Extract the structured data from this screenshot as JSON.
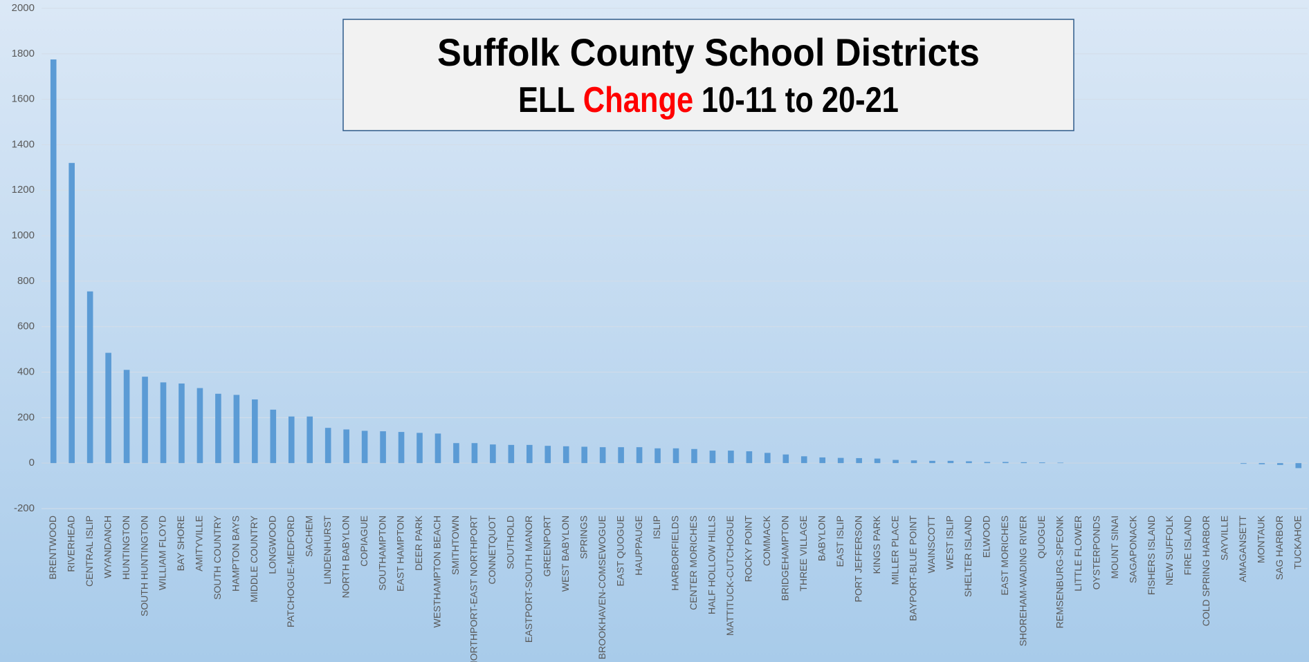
{
  "chart_data": {
    "type": "bar",
    "title": "Suffolk County School Districts",
    "subtitle": [
      "ELL",
      "Change",
      "10-11 to 20-21"
    ],
    "categories": [
      "BRENTWOOD",
      "RIVERHEAD",
      "CENTRAL ISLIP",
      "WYANDANCH",
      "HUNTINGTON",
      "SOUTH HUNTINGTON",
      "WILLIAM FLOYD",
      "BAY SHORE",
      "AMITYVILLE",
      "SOUTH COUNTRY",
      "HAMPTON BAYS",
      "MIDDLE COUNTRY",
      "LONGWOOD",
      "PATCHOGUE-MEDFORD",
      "SACHEM",
      "LINDENHURST",
      "NORTH BABYLON",
      "COPIAGUE",
      "SOUTHAMPTON",
      "EAST HAMPTON",
      "DEER PARK",
      "WESTHAMPTON BEACH",
      "SMITHTOWN",
      "NORTHPORT-EAST NORTHPORT",
      "CONNETQUOT",
      "SOUTHOLD",
      "EASTPORT-SOUTH MANOR",
      "GREENPORT",
      "WEST BABYLON",
      "SPRINGS",
      "BROOKHAVEN-COMSEWOGUE",
      "EAST QUOGUE",
      "HAUPPAUGE",
      "ISLIP",
      "HARBORFIELDS",
      "CENTER MORICHES",
      "HALF HOLLOW HILLS",
      "MATTITUCK-CUTCHOGUE",
      "ROCKY POINT",
      "COMMACK",
      "BRIDGEHAMPTON",
      "THREE VILLAGE",
      "BABYLON",
      "EAST ISLIP",
      "PORT JEFFERSON",
      "KINGS PARK",
      "MILLER PLACE",
      "BAYPORT-BLUE POINT",
      "WAINSCOTT",
      "WEST ISLIP",
      "SHELTER ISLAND",
      "ELWOOD",
      "EAST MORICHES",
      "SHOREHAM-WADING RIVER",
      "QUOGUE",
      "REMSENBURG-SPEONK",
      "LITTLE FLOWER",
      "OYSTERPONDS",
      "MOUNT SINAI",
      "SAGAPONACK",
      "FISHERS ISLAND",
      "NEW SUFFOLK",
      "FIRE ISLAND",
      "COLD SPRING HARBOR",
      "SAYVILLE",
      "AMAGANSETT",
      "MONTAUK",
      "SAG HARBOR",
      "TUCKAHOE"
    ],
    "values": [
      1775,
      1320,
      755,
      485,
      410,
      380,
      355,
      350,
      330,
      305,
      300,
      280,
      235,
      205,
      205,
      155,
      148,
      142,
      140,
      137,
      133,
      130,
      88,
      88,
      82,
      80,
      80,
      76,
      74,
      72,
      70,
      70,
      70,
      65,
      65,
      62,
      55,
      55,
      52,
      45,
      38,
      30,
      25,
      23,
      22,
      20,
      14,
      12,
      10,
      10,
      8,
      5,
      5,
      4,
      3,
      2,
      0,
      0,
      0,
      0,
      0,
      0,
      0,
      0,
      0,
      -3,
      -5,
      -8,
      -22
    ],
    "color": "#5b9bd5",
    "highlight_color": "#ff0000",
    "ylim": [
      -200,
      2000
    ],
    "yticks": [
      -200,
      0,
      200,
      400,
      600,
      800,
      1000,
      1200,
      1400,
      1600,
      1800,
      2000
    ],
    "grid": true
  }
}
